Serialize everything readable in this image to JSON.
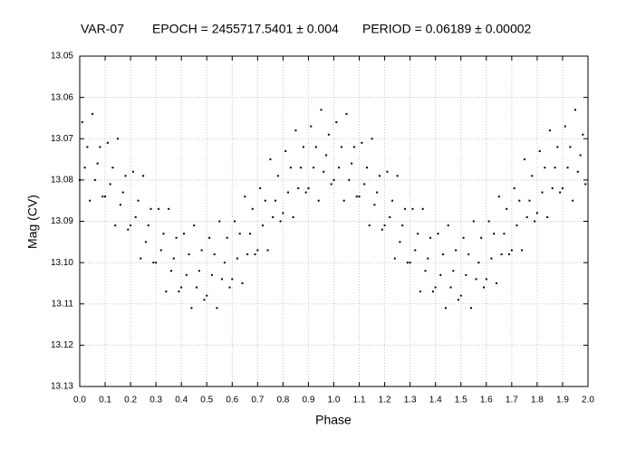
{
  "chart_data": {
    "type": "scatter",
    "title": "VAR-07",
    "annotations": [
      "EPOCH = 2455717.5401 ± 0.004",
      "PERIOD = 0.06189 ± 0.00002"
    ],
    "xlabel": "Phase",
    "ylabel": "Mag (CV)",
    "xlim": [
      0,
      2
    ],
    "ylim": [
      13.13,
      13.05
    ],
    "grid": true,
    "xticks": [
      {
        "value": 0,
        "label": "0.0"
      },
      0.1,
      0.2,
      0.3,
      0.4,
      0.5,
      0.6,
      0.7,
      0.8,
      0.9,
      {
        "value": 1,
        "label": "1.0"
      },
      1.1,
      1.2,
      1.3,
      1.4,
      1.5,
      1.6,
      1.7,
      1.8,
      1.9,
      {
        "value": 2,
        "label": "2.0"
      }
    ],
    "yticks": [
      13.05,
      13.06,
      13.07,
      13.08,
      13.09,
      {
        "value": 13.1,
        "label": "13.10"
      },
      13.11,
      13.12,
      13.13
    ],
    "series": [
      {
        "color": "#000000",
        "x": [
          0.0,
          0.01,
          0.02,
          0.03,
          0.04,
          0.05,
          0.06,
          0.07,
          0.08,
          0.09,
          0.1,
          0.11,
          0.12,
          0.13,
          0.14,
          0.15,
          0.16,
          0.17,
          0.18,
          0.19,
          0.2,
          0.21,
          0.22,
          0.23,
          0.24,
          0.25,
          0.26,
          0.27,
          0.28,
          0.29,
          0.3,
          0.31,
          0.32,
          0.33,
          0.34,
          0.35,
          0.36,
          0.37,
          0.38,
          0.39,
          0.4,
          0.41,
          0.42,
          0.43,
          0.44,
          0.45,
          0.46,
          0.47,
          0.48,
          0.49,
          0.5,
          0.51,
          0.52,
          0.53,
          0.54,
          0.55,
          0.56,
          0.57,
          0.58,
          0.59,
          0.6,
          0.61,
          0.62,
          0.63,
          0.64,
          0.65,
          0.66,
          0.67,
          0.68,
          0.69,
          0.7,
          0.71,
          0.72,
          0.73,
          0.74,
          0.75,
          0.76,
          0.77,
          0.78,
          0.79,
          0.8,
          0.81,
          0.82,
          0.83,
          0.84,
          0.85,
          0.86,
          0.87,
          0.88,
          0.89,
          0.9,
          0.91,
          0.92,
          0.93,
          0.94,
          0.95,
          0.96,
          0.97,
          0.98,
          0.99,
          1.0,
          1.01,
          1.02,
          1.03,
          1.04,
          1.05,
          1.06,
          1.07,
          1.08,
          1.09,
          1.1,
          1.11,
          1.12,
          1.13,
          1.14,
          1.15,
          1.16,
          1.17,
          1.18,
          1.19,
          1.2,
          1.21,
          1.22,
          1.23,
          1.24,
          1.25,
          1.26,
          1.27,
          1.28,
          1.29,
          1.3,
          1.31,
          1.32,
          1.33,
          1.34,
          1.35,
          1.36,
          1.37,
          1.38,
          1.39,
          1.4,
          1.41,
          1.42,
          1.43,
          1.44,
          1.45,
          1.46,
          1.47,
          1.48,
          1.49,
          1.5,
          1.51,
          1.52,
          1.53,
          1.54,
          1.55,
          1.56,
          1.57,
          1.58,
          1.59,
          1.6,
          1.61,
          1.62,
          1.63,
          1.64,
          1.65,
          1.66,
          1.67,
          1.68,
          1.69,
          1.7,
          1.71,
          1.72,
          1.73,
          1.74,
          1.75,
          1.76,
          1.77,
          1.78,
          1.79,
          1.8,
          1.81,
          1.82,
          1.83,
          1.84,
          1.85,
          1.86,
          1.87,
          1.88,
          1.89,
          1.9,
          1.91,
          1.92,
          1.93,
          1.94,
          1.95,
          1.96,
          1.97,
          1.98,
          1.99
        ],
        "values": [
          13.08,
          13.066,
          13.077,
          13.072,
          13.085,
          13.064,
          13.08,
          13.076,
          13.072,
          13.084,
          13.084,
          13.071,
          13.081,
          13.077,
          13.091,
          13.07,
          13.086,
          13.083,
          13.079,
          13.092,
          13.091,
          13.078,
          13.089,
          13.085,
          13.099,
          13.079,
          13.095,
          13.091,
          13.087,
          13.1,
          13.1,
          13.087,
          13.097,
          13.093,
          13.107,
          13.087,
          13.102,
          13.099,
          13.094,
          13.107,
          13.106,
          13.093,
          13.103,
          13.098,
          13.111,
          13.091,
          13.106,
          13.102,
          13.097,
          13.109,
          13.108,
          13.094,
          13.103,
          13.098,
          13.111,
          13.09,
          13.104,
          13.1,
          13.094,
          13.106,
          13.104,
          13.09,
          13.099,
          13.093,
          13.105,
          13.084,
          13.098,
          13.093,
          13.087,
          13.098,
          13.097,
          13.082,
          13.091,
          13.085,
          13.097,
          13.075,
          13.089,
          13.085,
          13.079,
          13.09,
          13.088,
          13.073,
          13.083,
          13.077,
          13.089,
          13.068,
          13.082,
          13.077,
          13.072,
          13.083,
          13.082,
          13.067,
          13.077,
          13.072,
          13.085,
          13.063,
          13.078,
          13.074,
          13.069,
          13.081,
          13.08,
          13.066,
          13.077,
          13.072,
          13.085,
          13.064,
          13.08,
          13.076,
          13.072,
          13.084,
          13.084,
          13.071,
          13.081,
          13.077,
          13.091,
          13.07,
          13.086,
          13.083,
          13.079,
          13.092,
          13.091,
          13.078,
          13.089,
          13.085,
          13.099,
          13.079,
          13.095,
          13.091,
          13.087,
          13.1,
          13.1,
          13.087,
          13.097,
          13.093,
          13.107,
          13.087,
          13.102,
          13.099,
          13.094,
          13.107,
          13.106,
          13.093,
          13.103,
          13.098,
          13.111,
          13.091,
          13.106,
          13.102,
          13.097,
          13.109,
          13.108,
          13.094,
          13.103,
          13.098,
          13.111,
          13.09,
          13.104,
          13.1,
          13.094,
          13.106,
          13.104,
          13.09,
          13.099,
          13.093,
          13.105,
          13.084,
          13.098,
          13.093,
          13.087,
          13.098,
          13.097,
          13.082,
          13.091,
          13.085,
          13.097,
          13.075,
          13.089,
          13.085,
          13.079,
          13.09,
          13.088,
          13.073,
          13.083,
          13.077,
          13.089,
          13.068,
          13.082,
          13.077,
          13.072,
          13.083,
          13.082,
          13.067,
          13.077,
          13.072,
          13.085,
          13.063,
          13.078,
          13.074,
          13.069,
          13.081
        ]
      }
    ]
  }
}
